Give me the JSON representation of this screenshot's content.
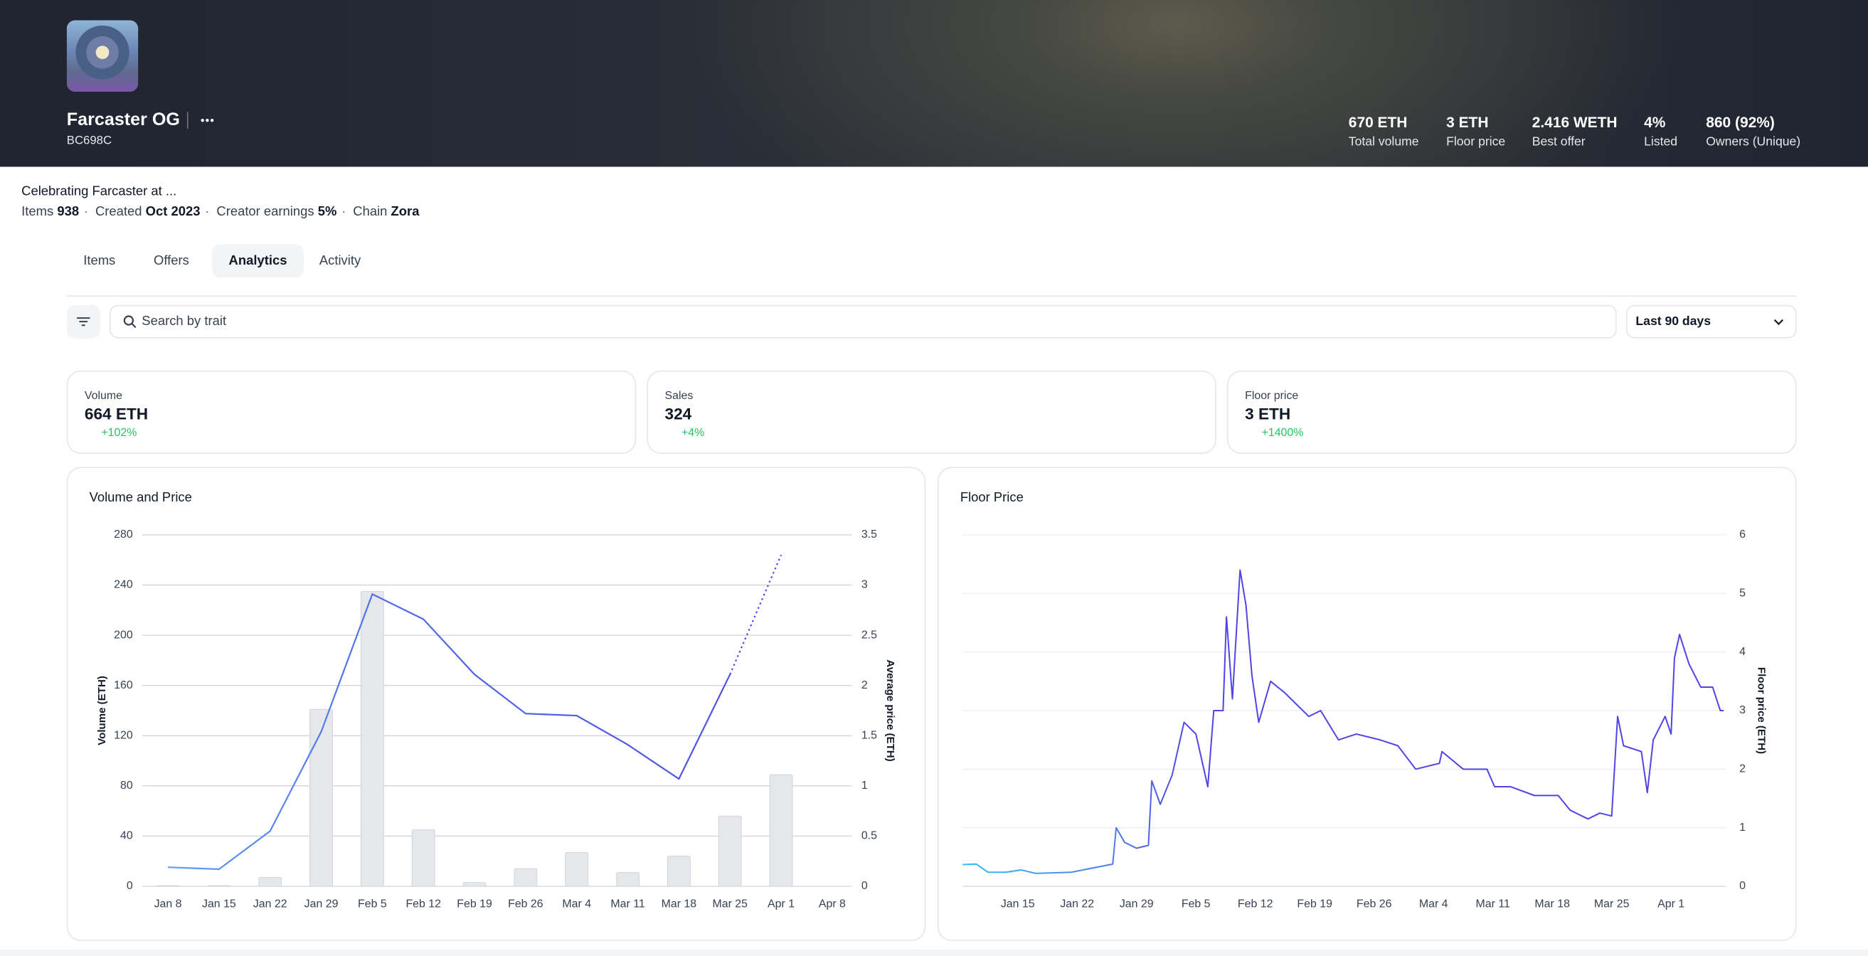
{
  "header": {
    "title": "Farcaster OG",
    "subtitle": "BC698C",
    "stats": [
      {
        "value": "670 ETH",
        "label": "Total volume"
      },
      {
        "value": "3 ETH",
        "label": "Floor price"
      },
      {
        "value": "2.416 WETH",
        "label": "Best offer"
      },
      {
        "value": "4%",
        "label": "Listed"
      },
      {
        "value": "860 (92%)",
        "label": "Owners (Unique)"
      }
    ]
  },
  "description": "Celebrating Farcaster at ...",
  "meta": [
    {
      "label": "Items",
      "value": "938"
    },
    {
      "label": "Created",
      "value": "Oct 2023"
    },
    {
      "label": "Creator earnings",
      "value": "5%"
    },
    {
      "label": "Chain",
      "value": "Zora"
    }
  ],
  "tabs": {
    "items": [
      "Items",
      "Offers",
      "Analytics",
      "Activity"
    ],
    "active": "Analytics"
  },
  "search": {
    "placeholder": "Search by trait"
  },
  "range": "Last 90 days",
  "cards": [
    {
      "label": "Volume",
      "value": "664 ETH",
      "change": "+102%"
    },
    {
      "label": "Sales",
      "value": "324",
      "change": "+4%"
    },
    {
      "label": "Floor price",
      "value": "3 ETH",
      "change": "+1400%"
    }
  ],
  "chart_data": [
    {
      "type": "bar",
      "title": "Volume and Price",
      "categories": [
        "Jan 8",
        "Jan 15",
        "Jan 22",
        "Jan 29",
        "Feb 5",
        "Feb 12",
        "Feb 19",
        "Feb 26",
        "Mar 4",
        "Mar 11",
        "Mar 18",
        "Mar 25",
        "Apr 1",
        "Apr 8"
      ],
      "series": [
        {
          "type": "bar",
          "color": "#e5e7eb",
          "values": [
            0.5,
            0.5,
            7,
            141,
            235,
            45,
            3,
            14,
            27,
            11,
            24,
            56,
            89,
            null
          ]
        },
        {
          "type": "line",
          "axis": "y2",
          "color": "#4f46e5",
          "values": [
            0.19,
            0.17,
            0.55,
            1.54,
            2.91,
            2.66,
            2.11,
            1.72,
            1.7,
            1.41,
            1.07,
            2.11,
            3.3,
            null
          ]
        }
      ],
      "ylabel": "Volume (ETH)",
      "y2label": "Average price (ETH)",
      "ylim": [
        0,
        280
      ],
      "yticks": [
        0,
        40,
        80,
        120,
        160,
        200,
        240,
        280
      ],
      "y2lim": [
        0,
        3.5
      ],
      "y2ticks": [
        0,
        0.5,
        1,
        1.5,
        2,
        2.5,
        3,
        3.5
      ],
      "grid": true
    },
    {
      "type": "line",
      "title": "Floor Price",
      "color": "#4f46e5",
      "x": [
        0.5,
        2.1,
        3.5,
        5.6,
        7.4,
        9.1,
        13.3,
        18.2,
        18.6,
        19.6,
        21,
        22.4,
        22.8,
        23.8,
        25.2,
        26.6,
        28,
        29.4,
        30.1,
        31.2,
        31.6,
        32.3,
        33.2,
        33.9,
        34.6,
        35.4,
        36.8,
        38.5,
        39.9,
        41.3,
        42.7,
        44.8,
        46.9,
        49.7,
        51.8,
        53.9,
        56.7,
        57,
        59.5,
        62.3,
        63.2,
        65.1,
        67.9,
        70.7,
        72.1,
        74.2,
        75.6,
        77,
        77.7,
        78.4,
        80.5,
        81.2,
        81.9,
        83.3,
        84,
        84.4,
        85,
        86.1,
        87.5,
        88.9,
        89.8,
        90.2
      ],
      "values": [
        0.37,
        0.38,
        0.24,
        0.24,
        0.28,
        0.22,
        0.24,
        0.38,
        1.0,
        0.75,
        0.65,
        0.7,
        1.8,
        1.4,
        1.9,
        2.8,
        2.6,
        1.7,
        3.0,
        3.0,
        4.6,
        3.2,
        5.4,
        4.8,
        3.6,
        2.8,
        3.5,
        3.3,
        3.1,
        2.9,
        3.0,
        2.5,
        2.6,
        2.5,
        2.4,
        2.0,
        2.1,
        2.3,
        2.0,
        2.0,
        1.7,
        1.7,
        1.55,
        1.55,
        1.3,
        1.15,
        1.25,
        1.2,
        2.9,
        2.4,
        2.3,
        1.6,
        2.5,
        2.9,
        2.6,
        3.9,
        4.3,
        3.8,
        3.4,
        3.4,
        3.0,
        3.0
      ],
      "xlim": [
        0.5,
        90.5
      ],
      "xticks": [
        {
          "value": 7,
          "label": "Jan 15"
        },
        {
          "value": 14,
          "label": "Jan 22"
        },
        {
          "value": 21,
          "label": "Jan 29"
        },
        {
          "value": 28,
          "label": "Feb 5"
        },
        {
          "value": 35,
          "label": "Feb 12"
        },
        {
          "value": 42,
          "label": "Feb 19"
        },
        {
          "value": 49,
          "label": "Feb 26"
        },
        {
          "value": 56,
          "label": "Mar 4"
        },
        {
          "value": 63,
          "label": "Mar 11"
        },
        {
          "value": 70,
          "label": "Mar 18"
        },
        {
          "value": 77,
          "label": "Mar 25"
        },
        {
          "value": 84,
          "label": "Apr 1"
        }
      ],
      "ylabel": "Floor price (ETH)",
      "ylim": [
        0,
        6
      ],
      "yticks": [
        0,
        1,
        2,
        3,
        4,
        5,
        6
      ],
      "grid": true
    }
  ]
}
